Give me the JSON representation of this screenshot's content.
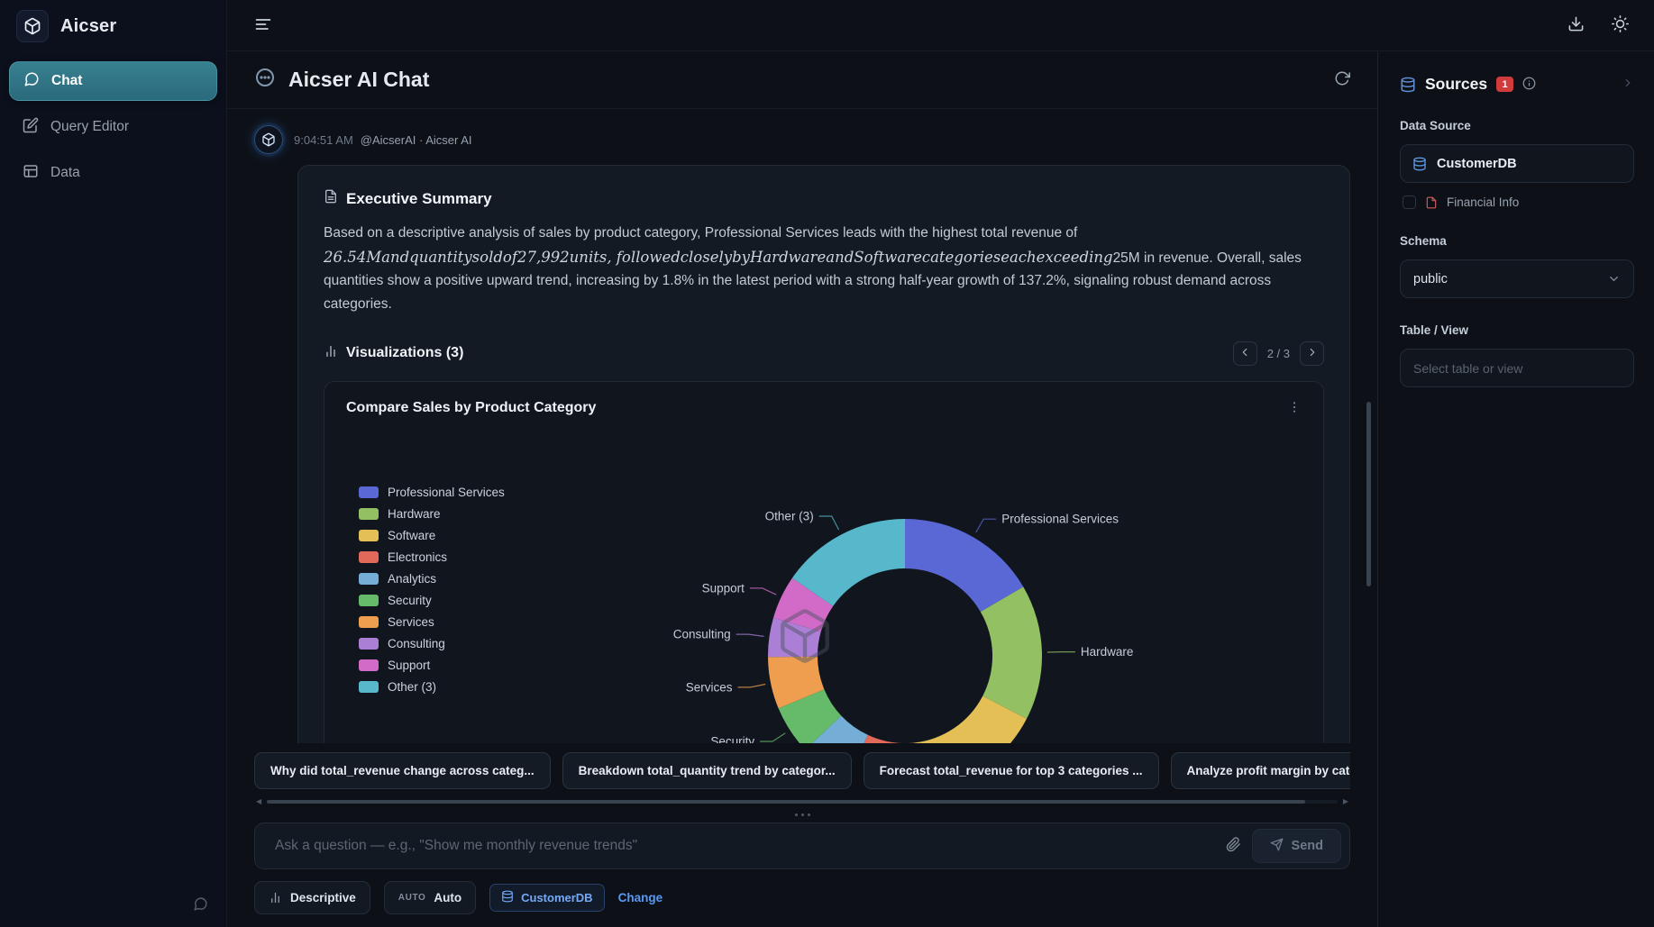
{
  "app": {
    "name": "Aicser"
  },
  "colors": {
    "accent_teal": "#2f7889",
    "link_blue": "#569af6",
    "badge_red": "#d23b3b",
    "card_bg": "#141a24"
  },
  "sidebar": {
    "items": [
      {
        "label": "Chat",
        "active": true
      },
      {
        "label": "Query Editor",
        "active": false
      },
      {
        "label": "Data",
        "active": false
      }
    ]
  },
  "chat": {
    "title": "Aicser AI Chat",
    "message": {
      "time": "9:04:51 AM",
      "author": "@AicserAI · Aicser AI",
      "summary_title": "Executive Summary",
      "summary_text_before": "Based on a descriptive analysis of sales by product category, Professional Services leads with the highest total revenue of ",
      "summary_text_math": "26.54Mandquantitysoldof27,992units, followedcloselybyHardwareandSoftwarecategorieseachexceeding",
      "summary_text_after": "25M in revenue. Overall, sales quantities show a positive upward trend, increasing by 1.8% in the latest period with a strong half-year growth of 137.2%, signaling robust demand across categories.",
      "visualizations_label": "Visualizations (3)",
      "pagination": "2 / 3"
    },
    "suggestions": [
      "Why did total_revenue change across categ...",
      "Breakdown total_quantity trend by categor...",
      "Forecast total_revenue for top 3 categories ...",
      "Analyze profit margin by category trends"
    ],
    "input_placeholder": "Ask a question — e.g., \"Show me monthly revenue trends\"",
    "send_label": "Send",
    "controls": {
      "mode_label": "Descriptive",
      "auto_badge": "AUTO",
      "auto_value": "Auto",
      "db_label": "CustomerDB",
      "change_label": "Change"
    }
  },
  "chart_data": {
    "type": "pie",
    "donut": true,
    "title": "Compare Sales by Product Category",
    "unit": "total_revenue ($M, estimated from arc sizes)",
    "categories": [
      "Professional Services",
      "Hardware",
      "Software",
      "Electronics",
      "Analytics",
      "Security",
      "Services",
      "Consulting",
      "Support",
      "Other (3)"
    ],
    "values": [
      26.54,
      25.6,
      25.2,
      13.8,
      9.6,
      9.2,
      9.8,
      7.4,
      8.2,
      24.6
    ],
    "colors": [
      "#5a68d6",
      "#93c063",
      "#e3bf55",
      "#e0695a",
      "#74aed6",
      "#66bb6a",
      "#ef9d4f",
      "#ab7fd6",
      "#d26bc7",
      "#56b8ca"
    ],
    "legend_position": "left",
    "start_angle_deg": -90,
    "direction": "clockwise"
  },
  "sources": {
    "title": "Sources",
    "badge": "1",
    "data_source_label": "Data Source",
    "data_source_value": "CustomerDB",
    "financial_info_label": "Financial Info",
    "schema_label": "Schema",
    "schema_value": "public",
    "table_label": "Table / View",
    "table_placeholder": "Select table or view"
  }
}
